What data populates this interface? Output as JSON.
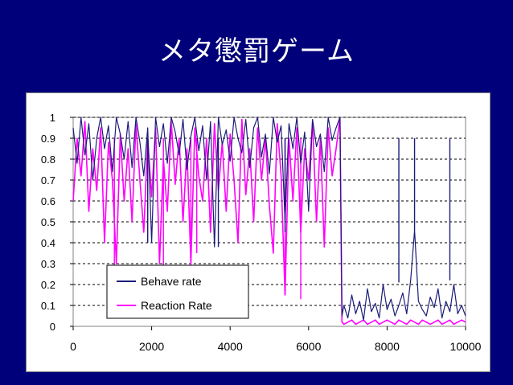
{
  "slide": {
    "title": "メタ懲罰ゲーム"
  },
  "colors": {
    "background": "#00007a",
    "behave": "#1c1c7a",
    "reaction": "#ff00ff",
    "grid": "#000000"
  },
  "chart_data": {
    "type": "line",
    "title": "",
    "xlabel": "",
    "ylabel": "",
    "xlim": [
      0,
      10000
    ],
    "ylim": [
      0,
      1
    ],
    "x_ticks": [
      "0",
      "2000",
      "4000",
      "6000",
      "8000",
      "10000"
    ],
    "y_ticks": [
      "0",
      "0.1",
      "0.2",
      "0.3",
      "0.4",
      "0.5",
      "0.6",
      "0.7",
      "0.8",
      "0.9",
      "1"
    ],
    "grid": "horizontal-dashed",
    "legend_position": "bottom-left",
    "series": [
      {
        "name": "Behave rate",
        "color": "#1c1c7a",
        "x": [
          0,
          100,
          200,
          300,
          400,
          500,
          600,
          700,
          800,
          900,
          1000,
          1100,
          1200,
          1300,
          1400,
          1500,
          1600,
          1700,
          1800,
          1900,
          2000,
          2100,
          2200,
          2300,
          2400,
          2500,
          2600,
          2700,
          2800,
          2900,
          3000,
          3100,
          3200,
          3300,
          3400,
          3500,
          3600,
          3700,
          3800,
          3900,
          4000,
          4100,
          4200,
          4300,
          4400,
          4500,
          4600,
          4700,
          4800,
          4900,
          5000,
          5100,
          5200,
          5300,
          5400,
          5500,
          5600,
          5700,
          5800,
          5900,
          6000,
          6100,
          6200,
          6300,
          6400,
          6500,
          6600,
          6700,
          6800,
          6850,
          6900,
          7000,
          7100,
          7200,
          7300,
          7400,
          7500,
          7600,
          7700,
          7800,
          7900,
          8000,
          8100,
          8200,
          8300,
          8400,
          8500,
          8600,
          8700,
          8800,
          8900,
          9000,
          9100,
          9200,
          9300,
          9400,
          9500,
          9600,
          9700,
          9800,
          9900,
          10000
        ],
        "values": [
          0.95,
          0.78,
          1.0,
          0.82,
          0.97,
          0.7,
          0.9,
          1.0,
          0.85,
          0.96,
          0.74,
          1.0,
          0.92,
          0.8,
          0.98,
          0.76,
          1.0,
          0.88,
          0.72,
          0.95,
          0.4,
          1.0,
          0.86,
          0.97,
          0.78,
          1.0,
          0.93,
          0.82,
          0.99,
          0.75,
          0.91,
          1.0,
          0.84,
          0.96,
          0.7,
          0.98,
          0.38,
          1.0,
          0.87,
          0.94,
          0.79,
          1.0,
          0.9,
          0.83,
          0.99,
          0.76,
          0.95,
          1.0,
          0.81,
          0.92,
          0.73,
          1.0,
          0.88,
          0.96,
          0.5,
          0.97,
          0.85,
          1.0,
          0.78,
          0.93,
          0.55,
          0.99,
          0.86,
          0.92,
          0.74,
          1.0,
          0.89,
          0.95,
          1.0,
          0.05,
          0.1,
          0.04,
          0.15,
          0.06,
          0.12,
          0.03,
          0.18,
          0.07,
          0.11,
          0.04,
          0.2,
          0.08,
          0.13,
          0.05,
          0.1,
          0.16,
          0.06,
          0.22,
          0.46,
          0.12,
          0.08,
          0.05,
          0.14,
          0.09,
          0.18,
          0.04,
          0.12,
          0.07,
          0.2,
          0.06,
          0.1,
          0.05
        ],
        "spikes": [
          [
            1900,
            0.4
          ],
          [
            3700,
            0.38
          ],
          [
            5400,
            0.45
          ],
          [
            8700,
            0.46
          ],
          [
            8300,
            0.21
          ],
          [
            9600,
            0.22
          ]
        ]
      },
      {
        "name": "Reaction Rate",
        "color": "#ff00ff",
        "x": [
          0,
          100,
          200,
          300,
          400,
          500,
          600,
          700,
          800,
          900,
          1000,
          1100,
          1200,
          1300,
          1400,
          1500,
          1600,
          1700,
          1800,
          1900,
          2000,
          2100,
          2200,
          2300,
          2400,
          2500,
          2600,
          2700,
          2800,
          2900,
          3000,
          3100,
          3200,
          3300,
          3400,
          3500,
          3600,
          3700,
          3800,
          3900,
          4000,
          4100,
          4200,
          4300,
          4400,
          4500,
          4600,
          4700,
          4800,
          4900,
          5000,
          5100,
          5200,
          5300,
          5400,
          5500,
          5600,
          5700,
          5800,
          5900,
          6000,
          6100,
          6200,
          6300,
          6400,
          6500,
          6600,
          6700,
          6800,
          6850,
          6900,
          7000,
          7100,
          7200,
          7300,
          7400,
          7500,
          7600,
          7700,
          7800,
          7900,
          8000,
          8100,
          8200,
          8300,
          8400,
          8500,
          8600,
          8700,
          8800,
          8900,
          9000,
          9100,
          9200,
          9300,
          9400,
          9500,
          9600,
          9700,
          9800,
          9900,
          10000
        ],
        "values": [
          0.6,
          0.9,
          0.72,
          0.98,
          0.55,
          0.85,
          0.65,
          0.95,
          0.4,
          0.88,
          0.7,
          0.3,
          0.92,
          0.6,
          0.85,
          0.5,
          0.97,
          0.7,
          0.45,
          0.9,
          0.62,
          0.95,
          0.3,
          0.8,
          0.55,
          0.98,
          0.68,
          0.9,
          0.5,
          0.85,
          0.3,
          0.95,
          0.72,
          0.6,
          0.9,
          0.45,
          0.97,
          0.65,
          0.88,
          0.55,
          0.92,
          0.7,
          0.4,
          0.99,
          0.63,
          0.85,
          0.5,
          0.95,
          0.7,
          0.9,
          0.58,
          0.35,
          0.97,
          0.72,
          0.15,
          0.9,
          0.6,
          0.95,
          0.45,
          0.85,
          0.7,
          0.98,
          0.5,
          0.9,
          0.38,
          0.95,
          0.72,
          0.85,
          1.0,
          0.02,
          0.01,
          0.02,
          0.03,
          0.01,
          0.02,
          0.03,
          0.01,
          0.02,
          0.03,
          0.01,
          0.02,
          0.03,
          0.02,
          0.01,
          0.03,
          0.02,
          0.01,
          0.03,
          0.02,
          0.01,
          0.03,
          0.02,
          0.01,
          0.02,
          0.03,
          0.01,
          0.02,
          0.03,
          0.01,
          0.02,
          0.03,
          0.02
        ],
        "spikes": [
          [
            1050,
            0.29
          ],
          [
            2300,
            0.29
          ],
          [
            3000,
            0.29
          ],
          [
            5400,
            0.15
          ],
          [
            5800,
            0.13
          ],
          [
            3150,
            0.35
          ]
        ]
      }
    ]
  }
}
